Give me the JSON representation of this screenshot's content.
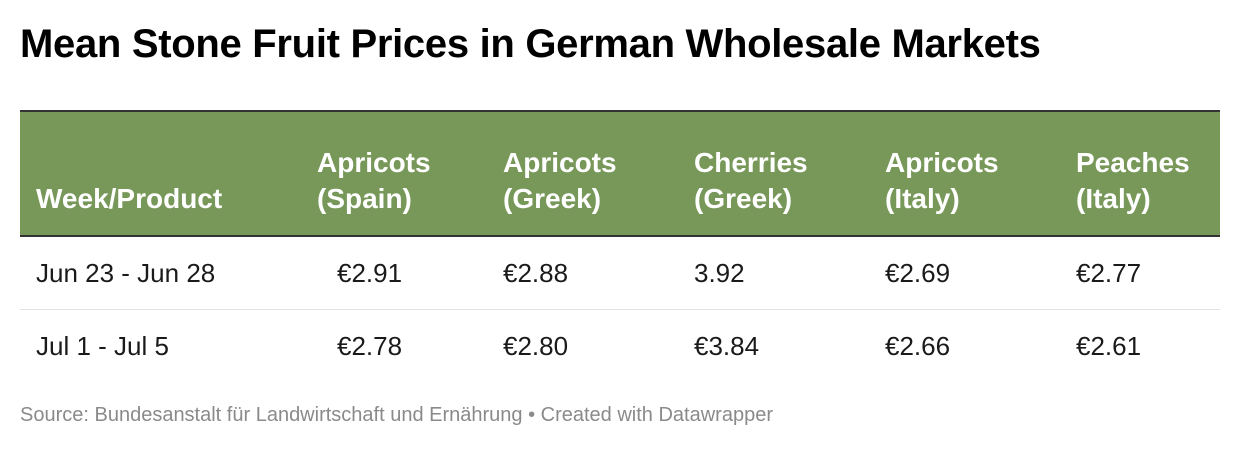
{
  "title": "Mean Stone Fruit Prices in German Wholesale Markets",
  "chart_data": {
    "type": "table",
    "title": "Mean Stone Fruit Prices in German Wholesale Markets",
    "header_color": "#78985a",
    "columns": [
      {
        "line1": "Week/Product",
        "line2": ""
      },
      {
        "line1": "Apricots",
        "line2": "(Spain)"
      },
      {
        "line1": "Apricots",
        "line2": "(Greek)"
      },
      {
        "line1": "Cherries",
        "line2": "(Greek)"
      },
      {
        "line1": "Apricots",
        "line2": "(Italy)"
      },
      {
        "line1": "Peaches",
        "line2": "(Italy)"
      }
    ],
    "rows": [
      [
        "Jun 23 - Jun 28",
        "€2.91",
        "€2.88",
        "3.92",
        "€2.69",
        "€2.77"
      ],
      [
        "Jul 1 - Jul 5",
        "€2.78",
        "€2.80",
        "€3.84",
        "€2.66",
        "€2.61"
      ]
    ]
  },
  "footer": {
    "source": "Source: Bundesanstalt für Landwirtschaft und Ernährung • Created with Datawrapper"
  }
}
